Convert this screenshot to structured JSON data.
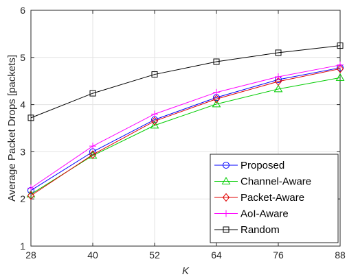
{
  "chart_data": {
    "type": "line",
    "title": "",
    "xlabel": "K",
    "ylabel": "Average Packet Drops [packets]",
    "x": [
      28,
      40,
      52,
      64,
      76,
      88
    ],
    "xlim": [
      28,
      88
    ],
    "ylim": [
      1,
      6
    ],
    "xticks": [
      "28",
      "40",
      "52",
      "64",
      "76",
      "88"
    ],
    "yticks": [
      "1",
      "2",
      "3",
      "4",
      "5",
      "6"
    ],
    "grid": true,
    "legend_position": "bottom-right",
    "series": [
      {
        "name": "Proposed",
        "color": "#0000ff",
        "marker": "circle",
        "values": [
          2.18,
          3.0,
          3.68,
          4.15,
          4.53,
          4.78
        ]
      },
      {
        "name": "Channel-Aware",
        "color": "#00cc00",
        "marker": "triangle",
        "values": [
          2.1,
          2.92,
          3.56,
          4.01,
          4.33,
          4.57
        ]
      },
      {
        "name": "Packet-Aware",
        "color": "#e00000",
        "marker": "diamond",
        "values": [
          2.07,
          2.94,
          3.65,
          4.12,
          4.49,
          4.76
        ]
      },
      {
        "name": "AoI-Aware",
        "color": "#ff00ff",
        "marker": "plus",
        "values": [
          2.23,
          3.12,
          3.8,
          4.26,
          4.59,
          4.84
        ]
      },
      {
        "name": "Random",
        "color": "#000000",
        "marker": "square",
        "values": [
          3.72,
          4.24,
          4.64,
          4.91,
          5.1,
          5.25
        ]
      }
    ]
  }
}
